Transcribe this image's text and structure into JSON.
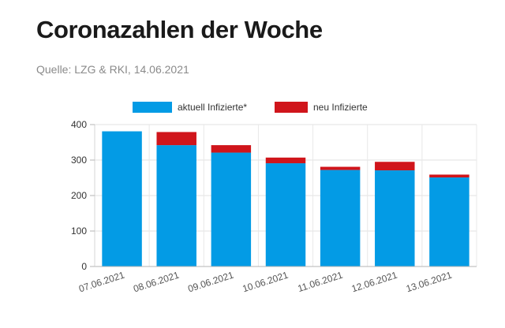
{
  "header": {
    "title": "Coronazahlen der Woche",
    "source": "Quelle: LZG & RKI, 14.06.2021"
  },
  "chart_data": {
    "type": "bar",
    "stacked": true,
    "categories": [
      "07.06.2021",
      "08.06.2021",
      "09.06.2021",
      "10.06.2021",
      "11.06.2021",
      "12.06.2021",
      "13.06.2021"
    ],
    "series": [
      {
        "name": "aktuell Infizierte*",
        "color": "#039be5",
        "values": [
          381,
          342,
          321,
          291,
          272,
          271,
          251
        ]
      },
      {
        "name": "neu Infizierte",
        "color": "#d0151b",
        "values": [
          0,
          37,
          21,
          16,
          9,
          24,
          8
        ]
      }
    ],
    "ylim": [
      0,
      400
    ],
    "yticks": [
      0,
      100,
      200,
      300,
      400
    ],
    "grid": true,
    "legend_position": "top"
  }
}
